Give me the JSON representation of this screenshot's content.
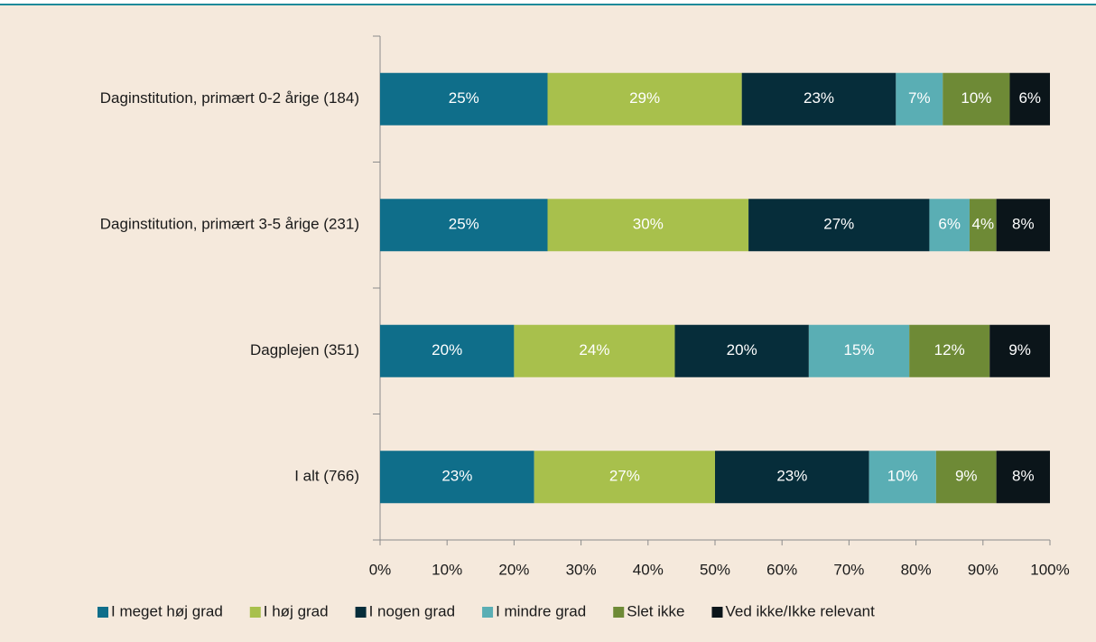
{
  "chart_data": {
    "type": "stacked_bar_horizontal",
    "categories": [
      "Daginstitution, primært 0-2 årige (184)",
      "Daginstitution, primært 3-5 årige (231)",
      "Dagplejen (351)",
      "I alt (766)"
    ],
    "series": [
      {
        "name": "I meget høj grad",
        "color": "#0f6e8a",
        "values": [
          25,
          25,
          20,
          23
        ],
        "value_labels": [
          "25%",
          "25%",
          "20%",
          "23%"
        ]
      },
      {
        "name": "I høj grad",
        "color": "#a8c04c",
        "values": [
          29,
          30,
          24,
          27
        ],
        "value_labels": [
          "29%",
          "30%",
          "24%",
          "27%"
        ]
      },
      {
        "name": "I nogen grad",
        "color": "#062d3a",
        "values": [
          23,
          27,
          20,
          23
        ],
        "value_labels": [
          "23%",
          "27%",
          "20%",
          "23%"
        ]
      },
      {
        "name": "I mindre grad",
        "color": "#5aaeb4",
        "values": [
          7,
          6,
          15,
          10
        ],
        "value_labels": [
          "7%",
          "6%",
          "15%",
          "10%"
        ]
      },
      {
        "name": "Slet ikke",
        "color": "#6e8a36",
        "values": [
          10,
          4,
          12,
          9
        ],
        "value_labels": [
          "10%",
          "4%",
          "12%",
          "9%"
        ]
      },
      {
        "name": "Ved ikke/Ikke relevant",
        "color": "#0b151a",
        "values": [
          6,
          8,
          9,
          8
        ],
        "value_labels": [
          "6%",
          "8%",
          "9%",
          "8%"
        ]
      }
    ],
    "xlim": [
      0,
      100
    ],
    "xticks": [
      {
        "value": 0,
        "label": "0%"
      },
      {
        "value": 10,
        "label": "10%"
      },
      {
        "value": 20,
        "label": "20%"
      },
      {
        "value": 30,
        "label": "30%"
      },
      {
        "value": 40,
        "label": "40%"
      },
      {
        "value": 50,
        "label": "50%"
      },
      {
        "value": 60,
        "label": "60%"
      },
      {
        "value": 70,
        "label": "70%"
      },
      {
        "value": 80,
        "label": "80%"
      },
      {
        "value": 90,
        "label": "90%"
      },
      {
        "value": 100,
        "label": "100%"
      }
    ],
    "legend": "bottom"
  }
}
